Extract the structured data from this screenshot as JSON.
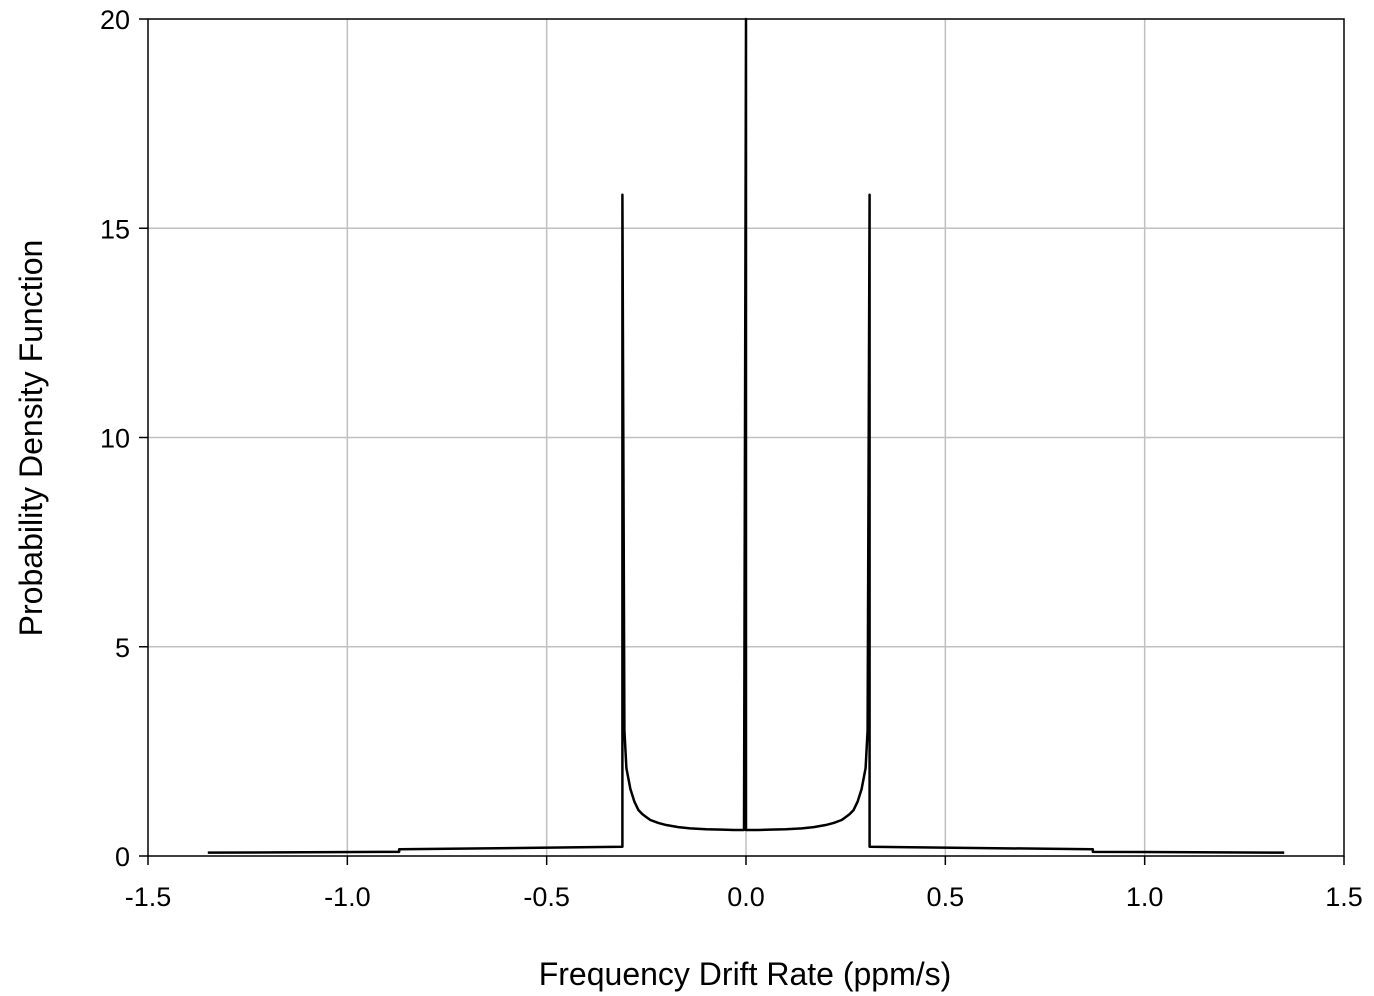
{
  "chart_data": {
    "type": "line",
    "title": "",
    "xlabel": "Frequency Drift Rate (ppm/s)",
    "ylabel": "Probability Density Function",
    "xlim": [
      -1.5,
      1.5
    ],
    "ylim": [
      0,
      20
    ],
    "xticks": [
      "-1.5",
      "-1.0",
      "-0.5",
      "0.0",
      "0.5",
      "1.0",
      "1.5"
    ],
    "yticks": [
      "0",
      "5",
      "10",
      "15",
      "20"
    ],
    "grid": true,
    "legend": "none",
    "line_color": "#000000",
    "grid_color": "#c0c0c0",
    "series": [
      {
        "x": [
          -1.35,
          -0.87,
          -0.87,
          -0.31,
          -0.31,
          -0.305,
          -0.3,
          -0.29,
          -0.28,
          -0.27,
          -0.26,
          -0.25,
          -0.24,
          -0.22,
          -0.2,
          -0.17,
          -0.14,
          -0.1,
          -0.06,
          -0.03,
          -0.005,
          0.0,
          0.0,
          0.005,
          0.03,
          0.06,
          0.1,
          0.14,
          0.17,
          0.2,
          0.22,
          0.24,
          0.25,
          0.26,
          0.27,
          0.28,
          0.29,
          0.3,
          0.305,
          0.31,
          0.31,
          0.87,
          0.87,
          1.35
        ],
        "y": [
          0.08,
          0.1,
          0.16,
          0.22,
          15.8,
          3.0,
          2.1,
          1.6,
          1.3,
          1.1,
          1.0,
          0.93,
          0.86,
          0.79,
          0.74,
          0.69,
          0.66,
          0.64,
          0.63,
          0.62,
          0.62,
          20.0,
          0.62,
          0.62,
          0.62,
          0.63,
          0.64,
          0.66,
          0.69,
          0.74,
          0.79,
          0.86,
          0.93,
          1.0,
          1.1,
          1.3,
          1.6,
          2.1,
          3.0,
          15.8,
          0.22,
          0.16,
          0.1,
          0.08
        ]
      }
    ]
  }
}
